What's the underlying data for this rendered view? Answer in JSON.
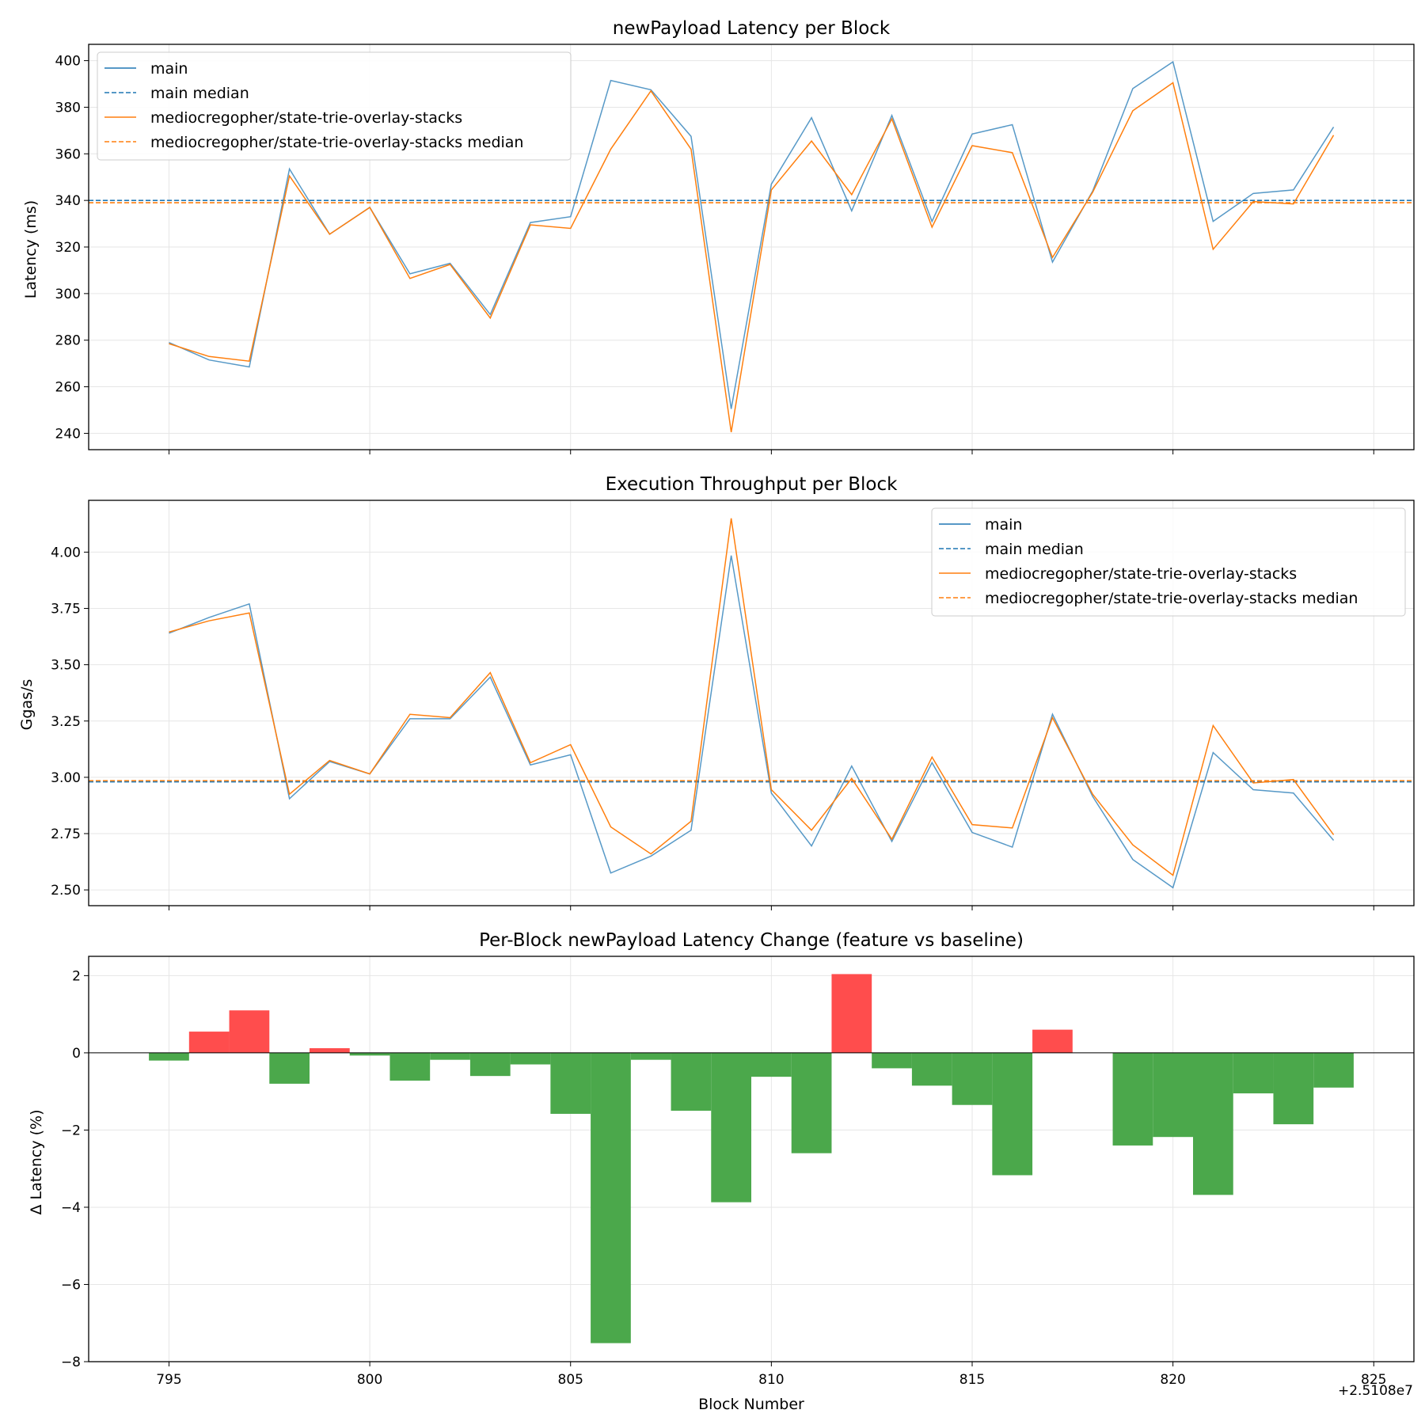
{
  "colors": {
    "main": "#1f77b4",
    "feature": "#ff7f0e",
    "increase": "#ff4d4d",
    "decrease": "#4ba84b",
    "grid": "#e6e6e6"
  },
  "x_offset_label": "+2.5108e7",
  "x_label": "Block Number",
  "chart_data": [
    {
      "type": "line",
      "title": "newPayload Latency per Block",
      "xlabel": "",
      "ylabel": "Latency (ms)",
      "x": [
        795,
        796,
        797,
        798,
        799,
        800,
        801,
        802,
        803,
        804,
        805,
        806,
        807,
        808,
        809,
        810,
        811,
        812,
        813,
        814,
        815,
        816,
        817,
        818,
        819,
        820,
        821,
        822,
        823,
        824
      ],
      "series": [
        {
          "name": "main",
          "style": "solid",
          "color": "#1f77b4",
          "values": [
            279,
            271.5,
            268.5,
            353.5,
            325.5,
            337,
            308.5,
            313,
            291,
            330.5,
            333,
            391.5,
            387.5,
            367.5,
            250.5,
            347,
            375.5,
            335.5,
            376.5,
            331,
            368.5,
            372.5,
            313.5,
            344,
            388,
            399.5,
            331,
            343,
            344.5,
            371.5
          ]
        },
        {
          "name": "mediocregopher/state-trie-overlay-stacks",
          "style": "solid",
          "color": "#ff7f0e",
          "values": [
            278.5,
            273,
            271,
            350.5,
            325.5,
            337,
            306.5,
            312.5,
            289.5,
            329.5,
            328,
            362,
            387,
            362,
            240.5,
            344.5,
            365.5,
            342.5,
            375,
            328.5,
            363.5,
            360.5,
            315.5,
            343.5,
            378.5,
            390.5,
            319,
            339.5,
            338.5,
            368
          ]
        }
      ],
      "medians": [
        {
          "name": "main median",
          "value": 340.0,
          "color": "#1f77b4"
        },
        {
          "name": "mediocregopher/state-trie-overlay-stacks median",
          "value": 339.0,
          "color": "#ff7f0e"
        }
      ],
      "xlim": [
        793,
        826
      ],
      "ylim": [
        233,
        407
      ],
      "yticks": [
        240,
        260,
        280,
        300,
        320,
        340,
        360,
        380,
        400
      ],
      "xticks": [
        795,
        800,
        805,
        810,
        815,
        820,
        825
      ],
      "show_xtick_labels": false,
      "grid": true,
      "legend": {
        "placement": "upper-left",
        "entries": [
          {
            "label": "main",
            "color": "#1f77b4",
            "dash": false
          },
          {
            "label": "main median",
            "color": "#1f77b4",
            "dash": true
          },
          {
            "label": "mediocregopher/state-trie-overlay-stacks",
            "color": "#ff7f0e",
            "dash": false
          },
          {
            "label": "mediocregopher/state-trie-overlay-stacks median",
            "color": "#ff7f0e",
            "dash": true
          }
        ]
      }
    },
    {
      "type": "line",
      "title": "Execution Throughput per Block",
      "xlabel": "",
      "ylabel": "Ggas/s",
      "x": [
        795,
        796,
        797,
        798,
        799,
        800,
        801,
        802,
        803,
        804,
        805,
        806,
        807,
        808,
        809,
        810,
        811,
        812,
        813,
        814,
        815,
        816,
        817,
        818,
        819,
        820,
        821,
        822,
        823,
        824
      ],
      "series": [
        {
          "name": "main",
          "style": "solid",
          "color": "#1f77b4",
          "values": [
            3.64,
            3.71,
            3.77,
            2.905,
            3.07,
            3.015,
            3.26,
            3.26,
            3.445,
            3.055,
            3.1,
            2.575,
            2.65,
            2.765,
            3.985,
            2.93,
            2.695,
            3.05,
            2.715,
            3.065,
            2.755,
            2.69,
            3.28,
            2.915,
            2.635,
            2.51,
            3.11,
            2.945,
            2.93,
            2.72
          ]
        },
        {
          "name": "mediocregopher/state-trie-overlay-stacks",
          "style": "solid",
          "color": "#ff7f0e",
          "values": [
            3.645,
            3.695,
            3.73,
            2.925,
            3.075,
            3.015,
            3.28,
            3.265,
            3.465,
            3.065,
            3.145,
            2.78,
            2.66,
            2.805,
            4.15,
            2.945,
            2.765,
            2.995,
            2.725,
            3.09,
            2.79,
            2.775,
            3.265,
            2.925,
            2.7,
            2.565,
            3.23,
            2.975,
            2.99,
            2.745
          ]
        }
      ],
      "medians": [
        {
          "name": "main median",
          "value": 2.98,
          "color": "#1f77b4"
        },
        {
          "name": "mediocregopher/state-trie-overlay-stacks median",
          "value": 2.985,
          "color": "#ff7f0e"
        }
      ],
      "xlim": [
        793,
        826
      ],
      "ylim": [
        2.43,
        4.23
      ],
      "yticks": [
        2.5,
        2.75,
        3.0,
        3.25,
        3.5,
        3.75,
        4.0
      ],
      "ytick_labels": [
        "2.50",
        "2.75",
        "3.00",
        "3.25",
        "3.50",
        "3.75",
        "4.00"
      ],
      "xticks": [
        795,
        800,
        805,
        810,
        815,
        820,
        825
      ],
      "show_xtick_labels": false,
      "grid": true,
      "legend": {
        "placement": "upper-right",
        "entries": [
          {
            "label": "main",
            "color": "#1f77b4",
            "dash": false
          },
          {
            "label": "main median",
            "color": "#1f77b4",
            "dash": true
          },
          {
            "label": "mediocregopher/state-trie-overlay-stacks",
            "color": "#ff7f0e",
            "dash": false
          },
          {
            "label": "mediocregopher/state-trie-overlay-stacks median",
            "color": "#ff7f0e",
            "dash": true
          }
        ]
      }
    },
    {
      "type": "bar",
      "title": "Per-Block newPayload Latency Change (feature vs baseline)",
      "xlabel": "Block Number",
      "ylabel": "Δ Latency (%)",
      "x": [
        795,
        796,
        797,
        798,
        799,
        800,
        801,
        802,
        803,
        804,
        805,
        806,
        807,
        808,
        809,
        810,
        811,
        812,
        813,
        814,
        815,
        816,
        817,
        818,
        819,
        820,
        821,
        822,
        823,
        824
      ],
      "values": [
        -0.2,
        0.55,
        1.1,
        -0.8,
        0.12,
        -0.07,
        -0.72,
        -0.18,
        -0.6,
        -0.3,
        -1.58,
        -7.52,
        -0.18,
        -1.5,
        -3.87,
        -0.62,
        -2.6,
        2.04,
        -0.4,
        -0.85,
        -1.35,
        -3.17,
        0.6,
        0.0,
        -2.4,
        -2.18,
        -3.68,
        -1.05,
        -1.85,
        -0.9
      ],
      "xlim": [
        793,
        826
      ],
      "ylim": [
        -8,
        2.5
      ],
      "yticks": [
        -8,
        -6,
        -4,
        -2,
        0,
        2
      ],
      "ytick_labels": [
        "−8",
        "−6",
        "−4",
        "−2",
        "0",
        "2"
      ],
      "xticks": [
        795,
        800,
        805,
        810,
        815,
        820,
        825
      ],
      "show_xtick_labels": true,
      "grid": true
    }
  ]
}
